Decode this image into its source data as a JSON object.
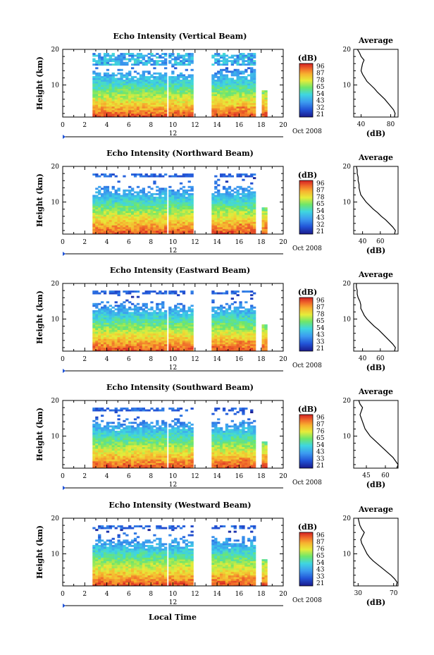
{
  "figure": {
    "x_axis_label": "Local Time",
    "units_label": "(dB)",
    "average_title": "Average"
  },
  "chart_data": [
    {
      "type": "heatmap",
      "title": "Echo Intensity (Vertical Beam)",
      "ylabel": "Height (km)",
      "xlim": [
        0,
        20
      ],
      "ylim": [
        1,
        20
      ],
      "x_ticks": [
        0,
        2,
        4,
        6,
        8,
        10,
        12,
        14,
        16,
        18,
        20
      ],
      "y_ticks": [
        10,
        20
      ],
      "x_sublabel": "12",
      "x_suffix": "Oct 2008",
      "colorbar": {
        "label": "(dB)",
        "ticks": [
          96,
          87,
          78,
          65,
          54,
          43,
          32,
          21
        ]
      },
      "average": {
        "title": "Average",
        "xlabel": "(dB)",
        "xlim": [
          30,
          90
        ],
        "x_ticks": [
          40,
          80
        ],
        "y_ticks": [
          10,
          20
        ],
        "heights": [
          1,
          2,
          3,
          4,
          5,
          6,
          7,
          8,
          9,
          10,
          11,
          12,
          13,
          14,
          15,
          16,
          17,
          18,
          19,
          20
        ],
        "values": [
          85,
          86,
          84,
          80,
          76,
          72,
          67,
          62,
          58,
          53,
          48,
          45,
          42,
          40,
          41,
          42,
          44,
          40,
          38,
          35
        ]
      }
    },
    {
      "type": "heatmap",
      "title": "Echo Intensity (Northward Beam)",
      "ylabel": "Height (km)",
      "xlim": [
        0,
        20
      ],
      "ylim": [
        1,
        20
      ],
      "x_ticks": [
        0,
        2,
        4,
        6,
        8,
        10,
        12,
        14,
        16,
        18,
        20
      ],
      "y_ticks": [
        10,
        20
      ],
      "x_sublabel": "12",
      "x_suffix": "Oct 2008",
      "colorbar": {
        "label": "(dB)",
        "ticks": [
          96,
          87,
          78,
          65,
          54,
          43,
          32,
          21
        ]
      },
      "average": {
        "title": "Average",
        "xlabel": "(dB)",
        "xlim": [
          30,
          80
        ],
        "x_ticks": [
          40,
          60
        ],
        "y_ticks": [
          10,
          20
        ],
        "heights": [
          1,
          2,
          3,
          4,
          5,
          6,
          7,
          8,
          9,
          10,
          11,
          12,
          13,
          14,
          15,
          16,
          17,
          18,
          19,
          20
        ],
        "values": [
          76,
          77,
          74,
          70,
          66,
          61,
          57,
          52,
          48,
          44,
          41,
          38,
          37,
          36,
          36,
          35,
          35,
          34,
          34,
          33
        ]
      }
    },
    {
      "type": "heatmap",
      "title": "Echo Intensity (Eastward Beam)",
      "ylabel": "Height (km)",
      "xlim": [
        0,
        20
      ],
      "ylim": [
        1,
        20
      ],
      "x_ticks": [
        0,
        2,
        4,
        6,
        8,
        10,
        12,
        14,
        16,
        18,
        20
      ],
      "y_ticks": [
        10,
        20
      ],
      "x_sublabel": "12",
      "x_suffix": "Oct 2008",
      "colorbar": {
        "label": "(dB)",
        "ticks": [
          96,
          87,
          78,
          65,
          54,
          43,
          33,
          21
        ]
      },
      "average": {
        "title": "Average",
        "xlabel": "(dB)",
        "xlim": [
          30,
          80
        ],
        "x_ticks": [
          40,
          60
        ],
        "y_ticks": [
          10,
          20
        ],
        "heights": [
          1,
          2,
          3,
          4,
          5,
          6,
          7,
          8,
          9,
          10,
          11,
          12,
          13,
          14,
          15,
          16,
          17,
          18,
          19,
          20
        ],
        "values": [
          76,
          77,
          74,
          70,
          66,
          62,
          58,
          53,
          49,
          45,
          42,
          40,
          38,
          38,
          37,
          35,
          34,
          34,
          33,
          33
        ]
      }
    },
    {
      "type": "heatmap",
      "title": "Echo Intensity (Southward Beam)",
      "ylabel": "Height (km)",
      "xlim": [
        0,
        20
      ],
      "ylim": [
        1,
        20
      ],
      "x_ticks": [
        0,
        2,
        4,
        6,
        8,
        10,
        12,
        14,
        16,
        18,
        20
      ],
      "y_ticks": [
        10,
        20
      ],
      "x_sublabel": "12",
      "x_suffix": "Oct 2008",
      "colorbar": {
        "label": "(dB)",
        "ticks": [
          96,
          87,
          76,
          65,
          54,
          43,
          33,
          21
        ]
      },
      "average": {
        "title": "Average",
        "xlabel": "(dB)",
        "xlim": [
          35,
          70
        ],
        "x_ticks": [
          45,
          60
        ],
        "y_ticks": [
          10,
          20
        ],
        "heights": [
          1,
          2,
          3,
          4,
          5,
          6,
          7,
          8,
          9,
          10,
          11,
          12,
          13,
          14,
          15,
          16,
          17,
          18,
          19,
          20
        ],
        "values": [
          69,
          70,
          68,
          66,
          63,
          60,
          57,
          54,
          51,
          48,
          46,
          44,
          43,
          42,
          41,
          40,
          41,
          42,
          40,
          39
        ]
      }
    },
    {
      "type": "heatmap",
      "title": "Echo Intensity (Westward Beam)",
      "ylabel": "Height (km)",
      "xlim": [
        0,
        20
      ],
      "ylim": [
        1,
        20
      ],
      "x_ticks": [
        0,
        2,
        4,
        6,
        8,
        10,
        12,
        14,
        16,
        18,
        20
      ],
      "y_ticks": [
        10,
        20
      ],
      "x_sublabel": "12",
      "x_suffix": "Oct 2008",
      "colorbar": {
        "label": "(dB)",
        "ticks": [
          96,
          87,
          76,
          65,
          54,
          43,
          33,
          21
        ]
      },
      "average": {
        "title": "Average",
        "xlabel": "(dB)",
        "xlim": [
          25,
          75
        ],
        "x_ticks": [
          30,
          70
        ],
        "y_ticks": [
          10,
          20
        ],
        "heights": [
          1,
          2,
          3,
          4,
          5,
          6,
          7,
          8,
          9,
          10,
          11,
          12,
          13,
          14,
          15,
          16,
          17,
          18,
          19,
          20
        ],
        "values": [
          73,
          74,
          71,
          67,
          62,
          57,
          52,
          47,
          43,
          40,
          38,
          36,
          34,
          33,
          35,
          37,
          34,
          32,
          31,
          30
        ]
      }
    }
  ]
}
